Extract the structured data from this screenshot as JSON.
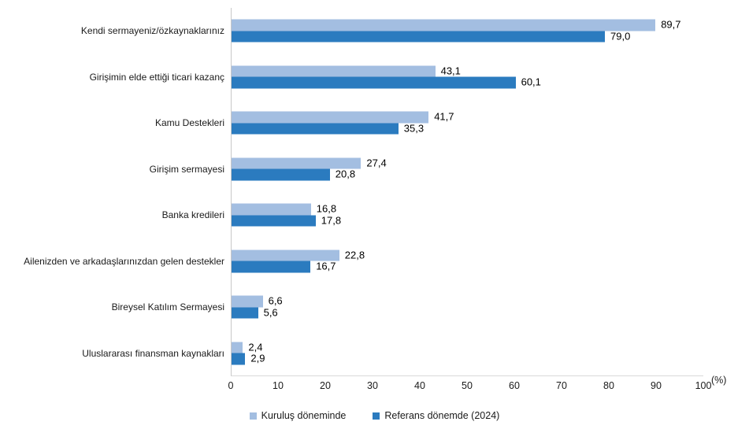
{
  "chart_data": {
    "type": "bar",
    "orientation": "horizontal",
    "title": "",
    "xlabel": "(%)",
    "ylabel": "",
    "xlim": [
      0,
      100
    ],
    "grid": false,
    "legend_position": "bottom-center",
    "decimal_separator": ",",
    "categories": [
      "Kendi sermayeniz/özkaynaklarınız",
      "Girişimin elde ettiği ticari kazanç",
      "Kamu Destekleri",
      "Girişim sermayesi",
      "Banka kredileri",
      "Ailenizden ve arkadaşlarınızdan gelen destekler",
      "Bireysel Katılım Sermayesi",
      "Uluslararası finansman kaynakları"
    ],
    "series": [
      {
        "name": "Kuruluş döneminde",
        "color": "#a3bee1",
        "values": [
          89.7,
          43.1,
          41.7,
          27.4,
          16.8,
          22.8,
          6.6,
          2.4
        ],
        "value_labels": [
          "89,7",
          "43,1",
          "41,7",
          "27,4",
          "16,8",
          "22,8",
          "6,6",
          "2,4"
        ]
      },
      {
        "name": "Referans dönemde (2024)",
        "color": "#2b7bbf",
        "values": [
          79.0,
          60.1,
          35.3,
          20.8,
          17.8,
          16.7,
          5.6,
          2.9
        ],
        "value_labels": [
          "79,0",
          "60,1",
          "35,3",
          "20,8",
          "17,8",
          "16,7",
          "5,6",
          "2,9"
        ]
      }
    ],
    "x_ticks": [
      0,
      10,
      20,
      30,
      40,
      50,
      60,
      70,
      80,
      90,
      100
    ],
    "x_tick_labels": [
      "0",
      "10",
      "20",
      "30",
      "40",
      "50",
      "60",
      "70",
      "80",
      "90",
      "100"
    ]
  },
  "colors": {
    "background": "#ffffff",
    "axis_line_vertical": "#c8c8c8",
    "axis_line_horizontal": "#d9d9d9",
    "text": "#1a1a1a"
  }
}
